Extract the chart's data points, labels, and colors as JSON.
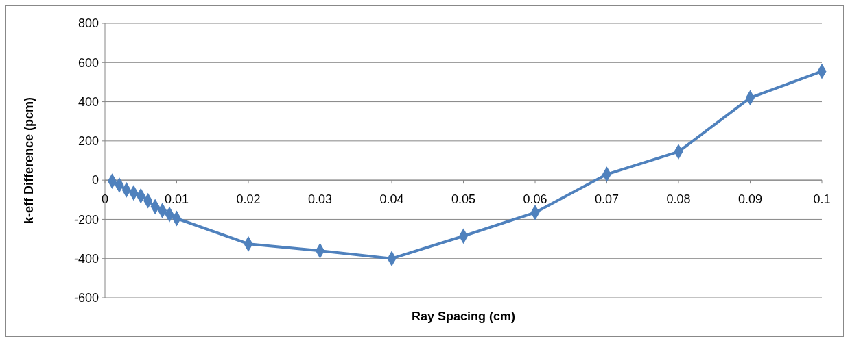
{
  "chart_data": {
    "type": "line",
    "xlabel": "Ray Spacing (cm)",
    "ylabel": "k-eff Difference (pcm)",
    "x": [
      0.001,
      0.002,
      0.003,
      0.004,
      0.005,
      0.006,
      0.007,
      0.008,
      0.009,
      0.01,
      0.02,
      0.03,
      0.04,
      0.05,
      0.06,
      0.07,
      0.08,
      0.09,
      0.1
    ],
    "series": [
      {
        "color": "#4f81bd",
        "values": [
          -5,
          -25,
          -50,
          -65,
          -80,
          -105,
          -135,
          -155,
          -175,
          -195,
          -325,
          -360,
          -400,
          -285,
          -165,
          30,
          145,
          420,
          555
        ]
      }
    ],
    "xlim": [
      0,
      0.1
    ],
    "xticks": [
      0,
      0.01,
      0.02,
      0.03,
      0.04,
      0.05,
      0.06,
      0.07,
      0.08,
      0.09,
      0.1
    ],
    "ylim": [
      -600,
      800
    ],
    "yticks": [
      -600,
      -400,
      -200,
      0,
      200,
      400,
      600,
      800
    ],
    "grid": "y",
    "marker": "diamond",
    "line_style": "solid"
  }
}
